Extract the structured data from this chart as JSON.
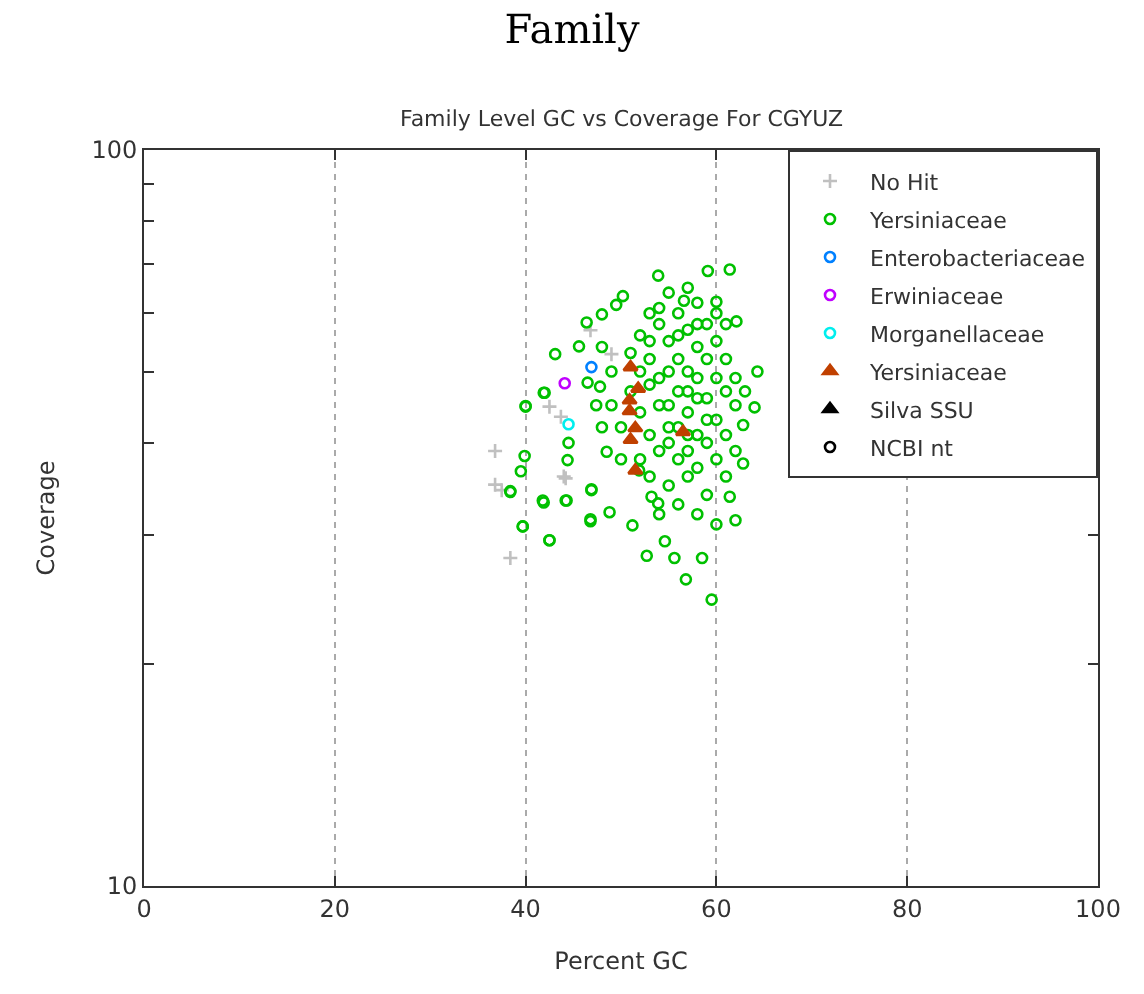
{
  "chart_data": {
    "type": "scatter",
    "title": "Family",
    "subtitle": "Family Level GC vs Coverage For CGYUZ",
    "xlabel": "Percent GC",
    "ylabel": "Coverage",
    "xlim": [
      0,
      100
    ],
    "xticks": [
      0,
      20,
      40,
      60,
      80,
      100
    ],
    "ylim": [
      10,
      100
    ],
    "yticks": [
      10,
      {
        "value": 20,
        "label": null
      },
      {
        "value": 30,
        "label": null
      },
      {
        "value": 40,
        "label": null
      },
      {
        "value": 50,
        "label": null
      },
      {
        "value": 60,
        "label": null
      },
      {
        "value": 70,
        "label": null
      },
      {
        "value": 80,
        "label": null
      },
      {
        "value": 90,
        "label": null
      },
      100
    ],
    "log": "y",
    "grid": "x",
    "legend": "top right",
    "series": [
      {
        "name": "No Hit",
        "color": "#c0c0c0",
        "marker": "cross",
        "x": [
          36.8,
          36.8,
          38.4,
          44.0,
          42.5,
          43.7,
          44.2,
          37.5,
          46.8,
          49.0
        ],
        "values": [
          39.0,
          35.1,
          27.9,
          36.0,
          44.8,
          43.4,
          35.8,
          34.5,
          56.9,
          52.8
        ]
      },
      {
        "name": "Yersiniaceae",
        "color": "#00c000",
        "marker": "circle",
        "x": [
          40.0,
          39.9,
          39.5,
          38.4,
          39.7,
          42.5,
          41.9,
          44.3,
          44.4,
          44.5,
          42.0,
          46.9,
          46.8,
          46.5,
          43.1,
          41.9,
          42.5,
          44.2,
          46.9,
          48.8,
          51.2,
          52.7,
          55.6,
          56.8,
          59.5,
          58.5,
          62.0,
          64.0,
          64.3,
          61.4,
          59.1,
          53.9,
          50.2,
          46.4,
          45.6,
          40.0,
          39.7,
          38.4,
          41.8,
          46.8,
          49.5,
          48.0,
          56.6,
          60.0,
          62.1,
          62.8,
          62.8,
          61.4,
          53.9,
          51.9,
          48.5,
          47.4,
          47.8,
          54.6,
          53.2,
          52,
          53,
          54,
          55,
          56,
          57,
          58,
          59,
          60,
          61,
          62,
          53,
          54,
          55,
          56,
          57,
          58,
          59,
          60,
          61,
          62,
          63,
          52,
          53,
          54,
          55,
          56,
          57,
          58,
          59,
          60,
          61,
          62,
          52,
          53,
          55,
          57,
          59,
          61,
          56,
          58,
          54,
          60,
          55,
          57,
          58,
          60,
          56,
          57,
          58,
          59,
          55,
          54,
          53,
          56,
          57,
          58,
          60,
          61,
          59,
          56,
          55,
          57,
          58,
          54,
          53,
          52,
          51,
          51,
          50,
          50,
          49,
          49,
          48,
          48
        ],
        "values": [
          44.9,
          38.4,
          36.6,
          34.3,
          30.8,
          29.5,
          33.2,
          33.4,
          37.9,
          40.0,
          46.8,
          34.5,
          31.3,
          48.3,
          52.8,
          46.8,
          29.5,
          33.4,
          34.6,
          32.2,
          30.9,
          28.1,
          27.9,
          26.1,
          24.5,
          27.9,
          31.4,
          44.7,
          50.0,
          68.8,
          68.5,
          67.5,
          63.3,
          58.3,
          54.1,
          44.8,
          30.8,
          34.4,
          33.4,
          31.5,
          61.6,
          59.8,
          62.4,
          62.2,
          58.5,
          42.3,
          37.5,
          33.8,
          33.1,
          36.7,
          38.9,
          45.0,
          47.7,
          29.4,
          33.8,
          56,
          52,
          58,
          55,
          60,
          57,
          54,
          58,
          55,
          52,
          49,
          48,
          45,
          50,
          47,
          44,
          49,
          46,
          43,
          47,
          45,
          47,
          44,
          41,
          39,
          42,
          38,
          41,
          37,
          40,
          38,
          41,
          39,
          38,
          36,
          35,
          36,
          34,
          36,
          33,
          32,
          32,
          31,
          64,
          65,
          62,
          60,
          52,
          50,
          46,
          43,
          45,
          49,
          55,
          42,
          39,
          41,
          49,
          58,
          52,
          56,
          40,
          47,
          58,
          61,
          60,
          50,
          47,
          53,
          42,
          38,
          45,
          50,
          42,
          54
        ]
      },
      {
        "name": "Enterobacteriaceae",
        "color": "#0080ff",
        "marker": "circle",
        "x": [
          46.9
        ],
        "values": [
          50.7
        ]
      },
      {
        "name": "Erwiniaceae",
        "color": "#c000ff",
        "marker": "circle",
        "x": [
          44.1
        ],
        "values": [
          48.2
        ]
      },
      {
        "name": "Morganellaceae",
        "color": "#00eeee",
        "marker": "circle",
        "x": [
          44.5
        ],
        "values": [
          42.4
        ]
      },
      {
        "name": "Yersiniaceae",
        "color": "#c04000",
        "marker": "triangle",
        "x": [
          51.0,
          51.8,
          50.9,
          50.9,
          51.5,
          51.0,
          51.5,
          56.5
        ],
        "values": [
          50.7,
          47.4,
          45.7,
          44.2,
          41.9,
          40.4,
          36.7,
          41.4
        ]
      },
      {
        "name": "Silva SSU",
        "color": "#000000",
        "marker": "triangle"
      },
      {
        "name": "NCBI nt",
        "color": "#000000",
        "marker": "circle"
      }
    ]
  }
}
